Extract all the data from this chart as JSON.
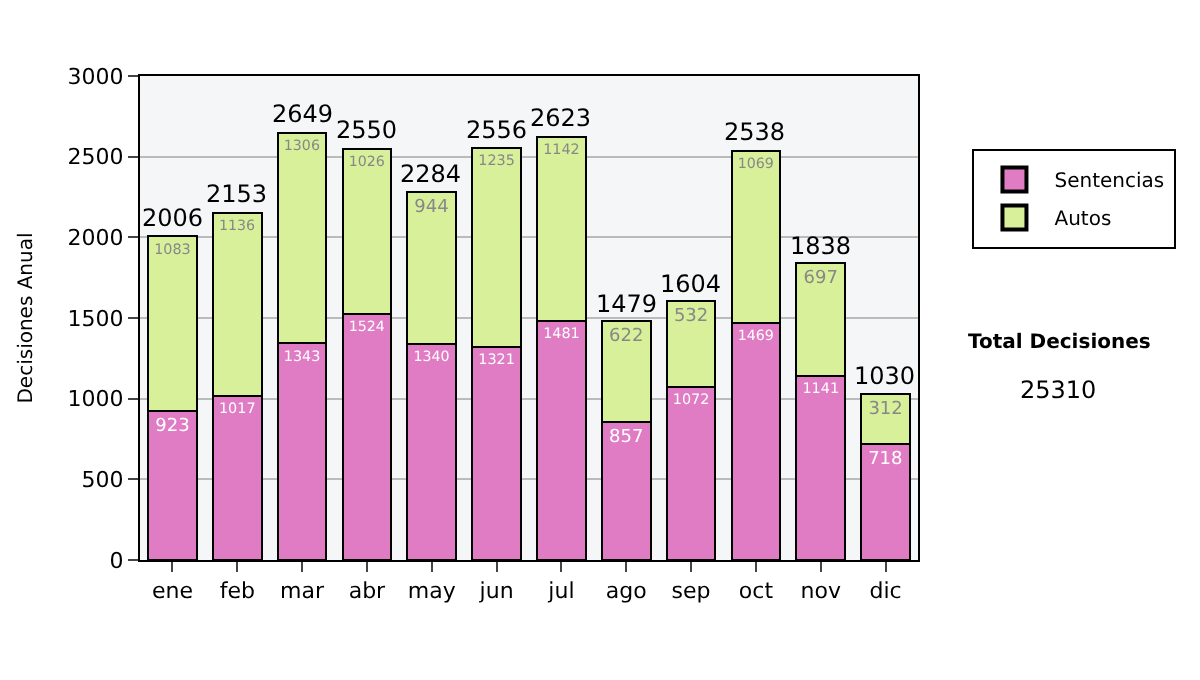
{
  "chart_data": {
    "type": "bar",
    "stacked": true,
    "ylabel": "Decisiones Anual",
    "categories": [
      "ene",
      "feb",
      "mar",
      "abr",
      "may",
      "jun",
      "jul",
      "ago",
      "sep",
      "oct",
      "nov",
      "dic"
    ],
    "series": [
      {
        "name": "Sentencias",
        "color": "#e07cc4",
        "values": [
          923,
          1017,
          1343,
          1524,
          1340,
          1321,
          1481,
          857,
          1072,
          1469,
          1141,
          718
        ]
      },
      {
        "name": "Autos",
        "color": "#d9f09a",
        "values": [
          1083,
          1136,
          1306,
          1026,
          944,
          1235,
          1142,
          622,
          532,
          1069,
          697,
          312
        ]
      }
    ],
    "totals": [
      "2006",
      "2153",
      "2649",
      "2550",
      "2284",
      "2556",
      "2623",
      "1479",
      "1604",
      "2538",
      "1838",
      "1030"
    ],
    "data_labels": true,
    "ylim": [
      0,
      3000
    ],
    "yticks": [
      0,
      500,
      1000,
      1500,
      2000,
      2500,
      3000
    ],
    "grid": "y",
    "legend": "right",
    "annotations": [
      "Total Decisiones",
      "25310"
    ]
  }
}
